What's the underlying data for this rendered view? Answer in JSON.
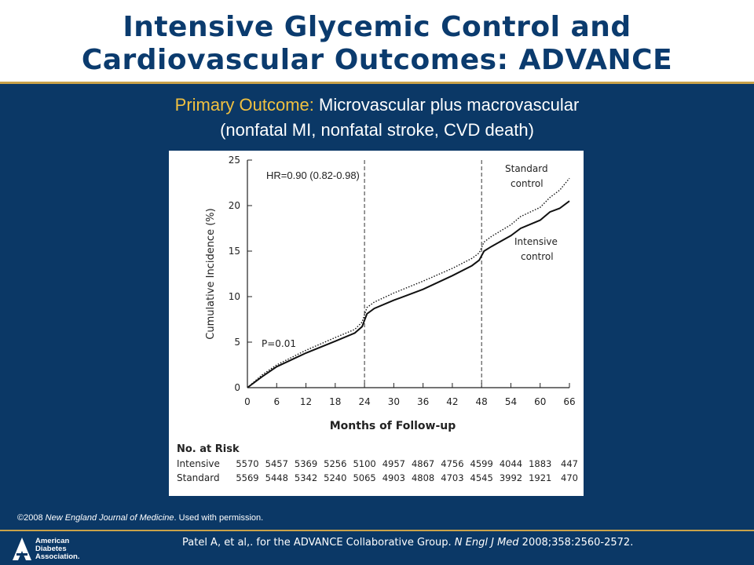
{
  "header": {
    "title_line1": "Intensive Glycemic Control and",
    "title_line2": "Cardiovascular Outcomes: ADVANCE"
  },
  "subtitle": {
    "lead": "Primary Outcome:",
    "rest_line1": " Microvascular plus macrovascular",
    "line2": "(nonfatal MI, nonfatal stroke, CVD death)"
  },
  "chart_data": {
    "type": "line",
    "xlabel": "Months of Follow-up",
    "ylabel": "Cumulative Incidence (%)",
    "xlim": [
      0,
      66
    ],
    "ylim": [
      0,
      25
    ],
    "x_ticks": [
      0,
      6,
      12,
      18,
      24,
      30,
      36,
      42,
      48,
      54,
      60,
      66
    ],
    "y_ticks": [
      0,
      5,
      10,
      15,
      20,
      25
    ],
    "vlines": [
      24,
      48
    ],
    "annotations": {
      "hr": "HR=0.90 (0.82-0.98)",
      "p": "P=0.01"
    },
    "series": [
      {
        "name": "Standard control",
        "label_lines": [
          "Standard",
          "control"
        ],
        "style": "dotted",
        "color": "#111111",
        "x": [
          0,
          3,
          6,
          12,
          18,
          22,
          23.5,
          24.5,
          26,
          30,
          36,
          42,
          46,
          47.5,
          48.5,
          50,
          54,
          56,
          60,
          62,
          64,
          66
        ],
        "y": [
          0,
          1.4,
          2.5,
          4.1,
          5.5,
          6.4,
          7.2,
          8.8,
          9.4,
          10.4,
          11.7,
          13.1,
          14.2,
          14.8,
          16.0,
          16.6,
          17.9,
          18.8,
          19.8,
          20.9,
          21.7,
          23.0
        ]
      },
      {
        "name": "Intensive control",
        "label_lines": [
          "Intensive",
          "control"
        ],
        "style": "solid",
        "color": "#111111",
        "x": [
          0,
          3,
          6,
          12,
          18,
          22,
          23.5,
          24.5,
          26,
          30,
          36,
          42,
          46,
          47.5,
          48.5,
          50,
          54,
          56,
          60,
          62,
          64,
          66
        ],
        "y": [
          0,
          1.2,
          2.3,
          3.8,
          5.1,
          6.0,
          6.7,
          8.1,
          8.7,
          9.6,
          10.8,
          12.3,
          13.4,
          14.0,
          15.0,
          15.5,
          16.7,
          17.5,
          18.4,
          19.3,
          19.7,
          20.5
        ]
      }
    ],
    "risk_table": {
      "title": "No. at Risk",
      "rows": [
        {
          "label": "Intensive",
          "values": [
            "5570",
            "5457",
            "5369",
            "5256",
            "5100",
            "4957",
            "4867",
            "4756",
            "4599",
            "4044",
            "1883",
            "447"
          ]
        },
        {
          "label": "Standard",
          "values": [
            "5569",
            "5448",
            "5342",
            "5240",
            "5065",
            "4903",
            "4808",
            "4703",
            "4545",
            "3992",
            "1921",
            "470"
          ]
        }
      ]
    }
  },
  "copyright": {
    "prefix": "©2008 ",
    "journal": "New England Journal of Medicine",
    "suffix": ". Used with permission."
  },
  "footer": {
    "logo_line1": "American",
    "logo_line2": "Diabetes",
    "logo_line3": "Association.",
    "citation_main": "Patel A, et al,. for the ADVANCE Collaborative Group. ",
    "citation_journal": "N Engl J Med",
    "citation_tail": " 2008;358:2560-2572."
  },
  "colors": {
    "navy": "#0b3866",
    "title": "#0b3b6e",
    "gold": "#c9a24a",
    "lead": "#f0c040"
  }
}
